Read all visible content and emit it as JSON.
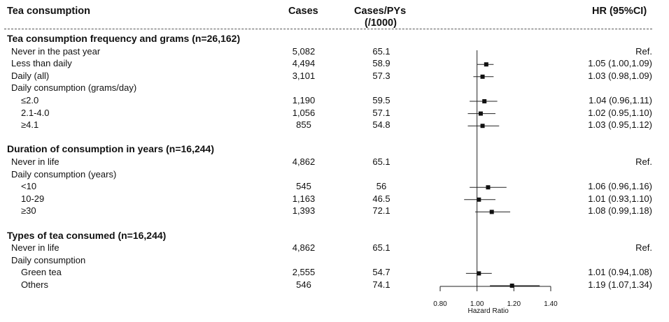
{
  "header": {
    "col_label": "Tea consumption",
    "col_cases": "Cases",
    "col_rate_1": "Cases/PYs",
    "col_rate_2": "(/1000)",
    "col_hr": "HR (95%CI)"
  },
  "rows": [
    {
      "label": "Tea consumption frequency and grams (n=26,162)",
      "kind": "section"
    },
    {
      "label": "Never in the past year",
      "cases": "5,082",
      "rate": "65.1",
      "hr_text": "Ref.",
      "indent": 1
    },
    {
      "label": "Less than daily",
      "cases": "4,494",
      "rate": "58.9",
      "hr_text": "1.05 (1.00,1.09)",
      "indent": 1
    },
    {
      "label": "Daily (all)",
      "cases": "3,101",
      "rate": "57.3",
      "hr_text": "1.03 (0.98,1.09)",
      "indent": 1
    },
    {
      "label": "Daily consumption (grams/day)",
      "indent": 1
    },
    {
      "label": "≤2.0",
      "cases": "1,190",
      "rate": "59.5",
      "hr_text": "1.04 (0.96,1.11)",
      "indent": 2
    },
    {
      "label": "2.1-4.0",
      "cases": "1,056",
      "rate": "57.1",
      "hr_text": "1.02 (0.95,1.10)",
      "indent": 2
    },
    {
      "label": "≥4.1",
      "cases": "855",
      "rate": "54.8",
      "hr_text": "1.03 (0.95,1.12)",
      "indent": 2
    },
    {
      "label": "",
      "kind": "blank"
    },
    {
      "label": "Duration of consumption in years (n=16,244)",
      "kind": "section"
    },
    {
      "label": "Never in life",
      "cases": "4,862",
      "rate": "65.1",
      "hr_text": "Ref.",
      "indent": 1
    },
    {
      "label": "Daily consumption (years)",
      "indent": 1
    },
    {
      "label": "<10",
      "cases": "545",
      "rate": "56",
      "hr_text": "1.06 (0.96,1.16)",
      "indent": 2
    },
    {
      "label": "10-29",
      "cases": "1,163",
      "rate": "46.5",
      "hr_text": "1.01 (0.93,1.10)",
      "indent": 2
    },
    {
      "label": "≥30",
      "cases": "1,393",
      "rate": "72.1",
      "hr_text": "1.08 (0.99,1.18)",
      "indent": 2
    },
    {
      "label": "",
      "kind": "blank"
    },
    {
      "label": "Types of tea consumed (n=16,244)",
      "kind": "section"
    },
    {
      "label": "Never in life",
      "cases": "4,862",
      "rate": "65.1",
      "hr_text": "Ref.",
      "indent": 1
    },
    {
      "label": "Daily consumption",
      "indent": 1
    },
    {
      "label": "Green tea",
      "cases": "2,555",
      "rate": "54.7",
      "hr_text": "1.01 (0.94,1.08)",
      "indent": 2
    },
    {
      "label": "Others",
      "cases": "546",
      "rate": "74.1",
      "hr_text": "1.19 (1.07,1.34)",
      "indent": 2
    }
  ],
  "chart_data": {
    "type": "forest",
    "xlabel": "Hazard Ratio",
    "xlim": [
      0.8,
      1.4
    ],
    "xticks": [
      "0.80",
      "1.00",
      "1.20",
      "1.40"
    ],
    "xtick_values": [
      0.8,
      1.0,
      1.2,
      1.4
    ],
    "reference_line": 1.0,
    "points": [
      {
        "label": "Less than daily",
        "hr": 1.05,
        "lo": 1.0,
        "hi": 1.09
      },
      {
        "label": "Daily (all)",
        "hr": 1.03,
        "lo": 0.98,
        "hi": 1.09
      },
      {
        "label": "≤2.0",
        "hr": 1.04,
        "lo": 0.96,
        "hi": 1.11
      },
      {
        "label": "2.1-4.0",
        "hr": 1.02,
        "lo": 0.95,
        "hi": 1.1
      },
      {
        "label": "≥4.1",
        "hr": 1.03,
        "lo": 0.95,
        "hi": 1.12
      },
      {
        "label": "<10",
        "hr": 1.06,
        "lo": 0.96,
        "hi": 1.16
      },
      {
        "label": "10-29",
        "hr": 1.01,
        "lo": 0.93,
        "hi": 1.1
      },
      {
        "label": "≥30",
        "hr": 1.08,
        "lo": 0.99,
        "hi": 1.18
      },
      {
        "label": "Green tea",
        "hr": 1.01,
        "lo": 0.94,
        "hi": 1.08
      },
      {
        "label": "Others",
        "hr": 1.19,
        "lo": 1.07,
        "hi": 1.34
      }
    ]
  }
}
